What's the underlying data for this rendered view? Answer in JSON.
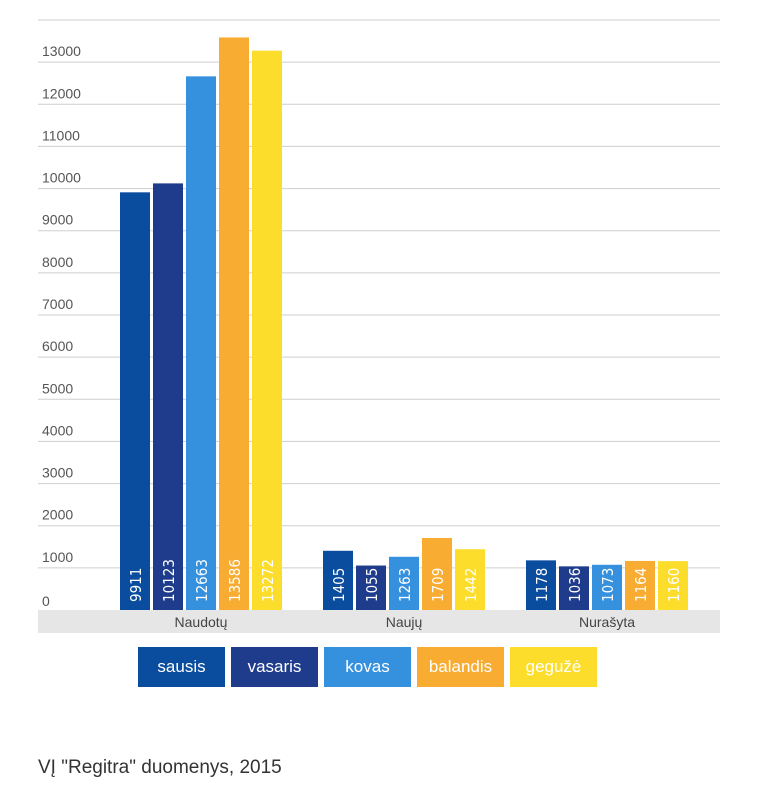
{
  "chart_data": {
    "type": "bar",
    "categories": [
      "Naudotų",
      "Naujų",
      "Nurašyta"
    ],
    "series": [
      {
        "name": "sausis",
        "values": [
          9911,
          1405,
          1178
        ],
        "color": "#0a4c9e",
        "label_color": "#ffffff"
      },
      {
        "name": "vasaris",
        "values": [
          10123,
          1055,
          1036
        ],
        "color": "#1f3b8c",
        "label_color": "#ffffff"
      },
      {
        "name": "kovas",
        "values": [
          12663,
          1263,
          1073
        ],
        "color": "#3590de",
        "label_color": "#ffffff"
      },
      {
        "name": "balandis",
        "values": [
          13586,
          1709,
          1164
        ],
        "color": "#f9ac32",
        "label_color": "#ffffff"
      },
      {
        "name": "gegužė",
        "values": [
          13272,
          1442,
          1160
        ],
        "color": "#fddd2c",
        "label_color": "#ffffff"
      }
    ],
    "y_ticks": [
      "0",
      "1000",
      "2000",
      "3000",
      "4000",
      "5000",
      "6000",
      "7000",
      "8000",
      "9000",
      "10000",
      "11000",
      "12000",
      "13000"
    ],
    "ylim": [
      0,
      14000
    ],
    "grid": true,
    "legend_position": "bottom",
    "xlabel": "",
    "ylabel": ""
  },
  "source": "VĮ \"Regitra\" duomenys, 2015"
}
